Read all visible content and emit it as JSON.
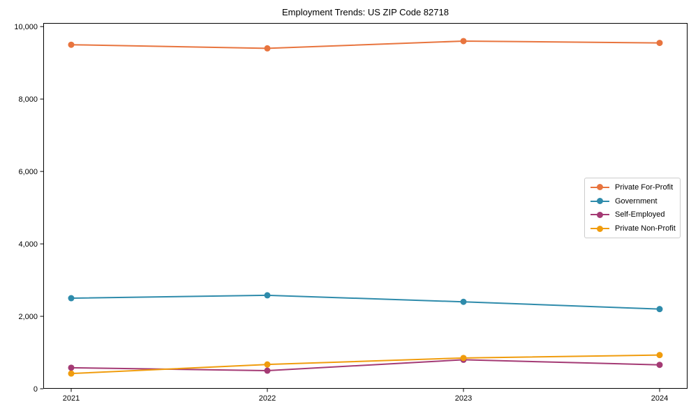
{
  "title": "Employment Trends: US ZIP Code 82718",
  "chart_data": {
    "type": "line",
    "title": "Employment Trends: US ZIP Code 82718",
    "xlabel": "",
    "ylabel": "",
    "x_labels": [
      "2021",
      "2022",
      "2023",
      "2024"
    ],
    "x_values": [
      2021,
      2022,
      2023,
      2024
    ],
    "series": [
      {
        "name": "Private For-Profit",
        "color": "#E8743E",
        "values": [
          9500,
          9400,
          9600,
          9550
        ]
      },
      {
        "name": "Government",
        "color": "#2E8BAB",
        "values": [
          2500,
          2580,
          2400,
          2200
        ]
      },
      {
        "name": "Self-Employed",
        "color": "#A43A74",
        "values": [
          580,
          500,
          800,
          660
        ]
      },
      {
        "name": "Private Non-Profit",
        "color": "#F09C0D",
        "values": [
          420,
          670,
          850,
          930
        ]
      }
    ],
    "ylim": [
      0,
      10100
    ],
    "yticks": {
      "values": [
        0,
        2000,
        4000,
        6000,
        8000,
        10000
      ],
      "labels": [
        "0",
        "2,000",
        "4,000",
        "6,000",
        "8,000",
        "10,000"
      ]
    },
    "grid": false,
    "legend_position": "center-right",
    "marker": "circle",
    "axis_color": "#000000",
    "tick_label_color": "#000000",
    "background_color": "#ffffff"
  }
}
